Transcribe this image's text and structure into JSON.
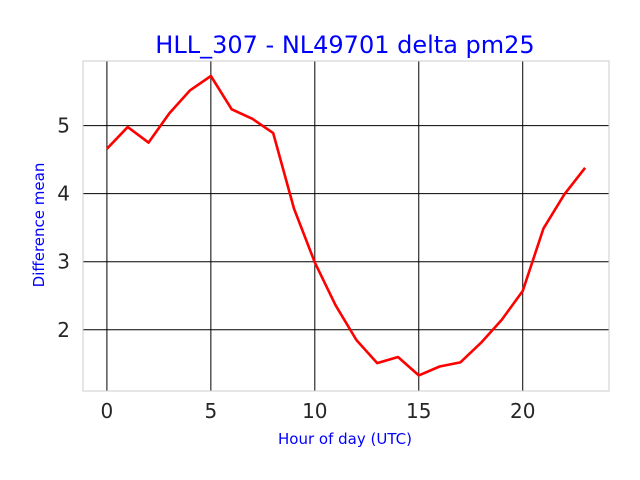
{
  "chart_data": {
    "type": "line",
    "title": "HLL_307 - NL49701 delta pm25",
    "xlabel": "Hour of day (UTC)",
    "ylabel": "Difference mean",
    "xlim": [
      -1.15,
      24.15
    ],
    "ylim": [
      1.1,
      5.95
    ],
    "xticks": [
      0,
      5,
      10,
      15,
      20
    ],
    "yticks": [
      2,
      3,
      4,
      5
    ],
    "grid": true,
    "colors": {
      "line": "#ff0000",
      "title": "#0000ff",
      "labels": "#0000ff",
      "grid": "#000000",
      "frame": "#cccccc"
    },
    "series": [
      {
        "x": [
          0,
          1,
          2,
          3,
          4,
          5,
          6,
          7,
          8,
          9,
          10,
          11,
          12,
          13,
          14,
          15,
          16,
          17,
          18,
          19,
          20,
          21,
          22,
          23
        ],
        "values": [
          4.66,
          4.98,
          4.75,
          5.18,
          5.52,
          5.73,
          5.24,
          5.1,
          4.89,
          3.78,
          2.99,
          2.36,
          1.85,
          1.51,
          1.6,
          1.33,
          1.46,
          1.52,
          1.81,
          2.15,
          2.57,
          3.49,
          3.99,
          4.38
        ]
      }
    ]
  }
}
